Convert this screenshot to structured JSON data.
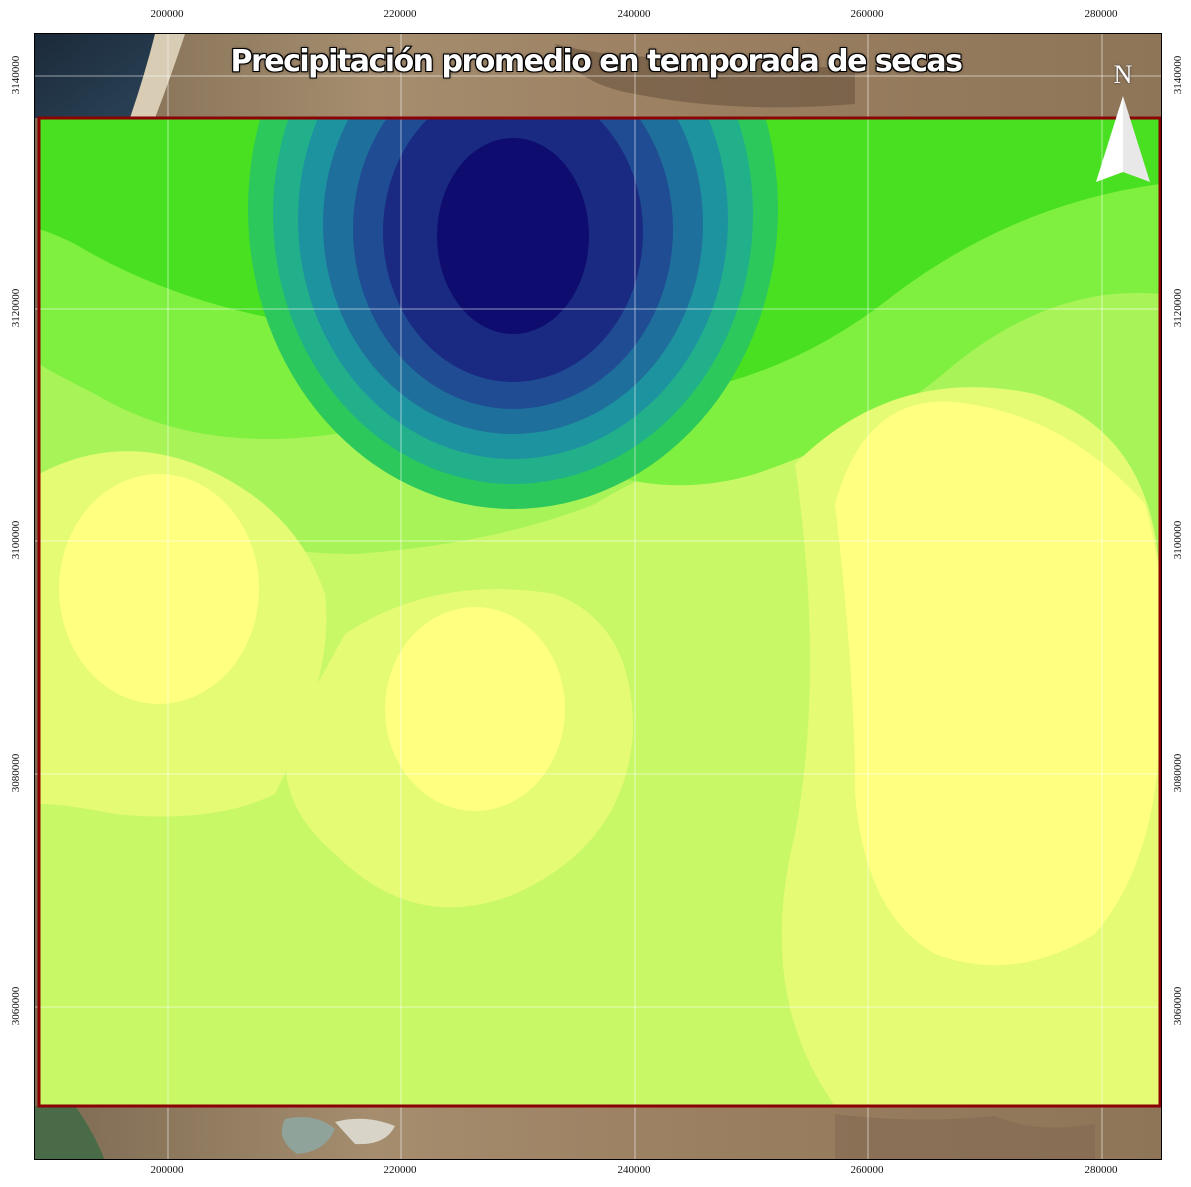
{
  "map": {
    "title": "Precipitación promedio en temporada de secas",
    "north_label": "N",
    "x_ticks": [
      "200000",
      "220000",
      "240000",
      "260000",
      "280000"
    ],
    "y_ticks": [
      "3140000",
      "3120000",
      "3100000",
      "3080000",
      "3060000"
    ],
    "study_area_border_color": "#8b0000",
    "palette": [
      "#0e0c6e",
      "#1a2a82",
      "#1f4c92",
      "#1e6f9c",
      "#1e93a0",
      "#22b08a",
      "#2cc85c",
      "#48e020",
      "#7ff040",
      "#a8f458",
      "#c8f866",
      "#e4fb73",
      "#ffff80"
    ],
    "icons": [
      "north-arrow-icon"
    ]
  }
}
